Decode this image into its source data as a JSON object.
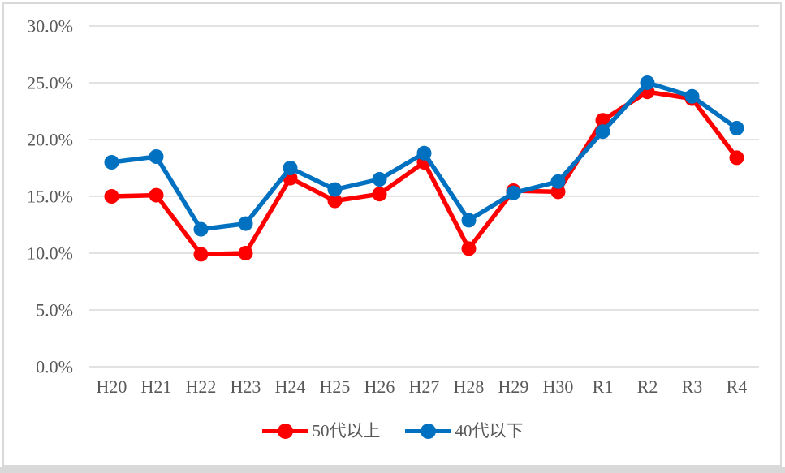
{
  "chart_data": {
    "type": "line",
    "title": "",
    "xlabel": "",
    "ylabel": "",
    "categories": [
      "H20",
      "H21",
      "H22",
      "H23",
      "H24",
      "H25",
      "H26",
      "H27",
      "H28",
      "H29",
      "H30",
      "R1",
      "R2",
      "R3",
      "R4"
    ],
    "series": [
      {
        "name": "50代以上",
        "color": "#FF0000",
        "values": [
          15.0,
          15.1,
          9.9,
          10.0,
          16.6,
          14.6,
          15.2,
          18.0,
          10.4,
          15.5,
          15.4,
          21.7,
          24.2,
          23.6,
          18.4
        ]
      },
      {
        "name": "40代以下",
        "color": "#0070C0",
        "values": [
          18.0,
          18.5,
          12.1,
          12.6,
          17.5,
          15.6,
          16.5,
          18.8,
          12.9,
          15.3,
          16.3,
          20.7,
          25.0,
          23.8,
          21.0
        ]
      }
    ],
    "y_axis": {
      "min": 0,
      "max": 30,
      "step": 5,
      "tick_labels": [
        "0.0%",
        "5.0%",
        "10.0%",
        "15.0%",
        "20.0%",
        "25.0%",
        "30.0%"
      ]
    },
    "grid": true,
    "legend_position": "bottom",
    "style": {
      "gridline_color": "#D9D9D9",
      "axis_text_color": "#595959",
      "border_color": "#D9D9D9",
      "marker_radius": 9,
      "line_width": 5.5
    }
  }
}
